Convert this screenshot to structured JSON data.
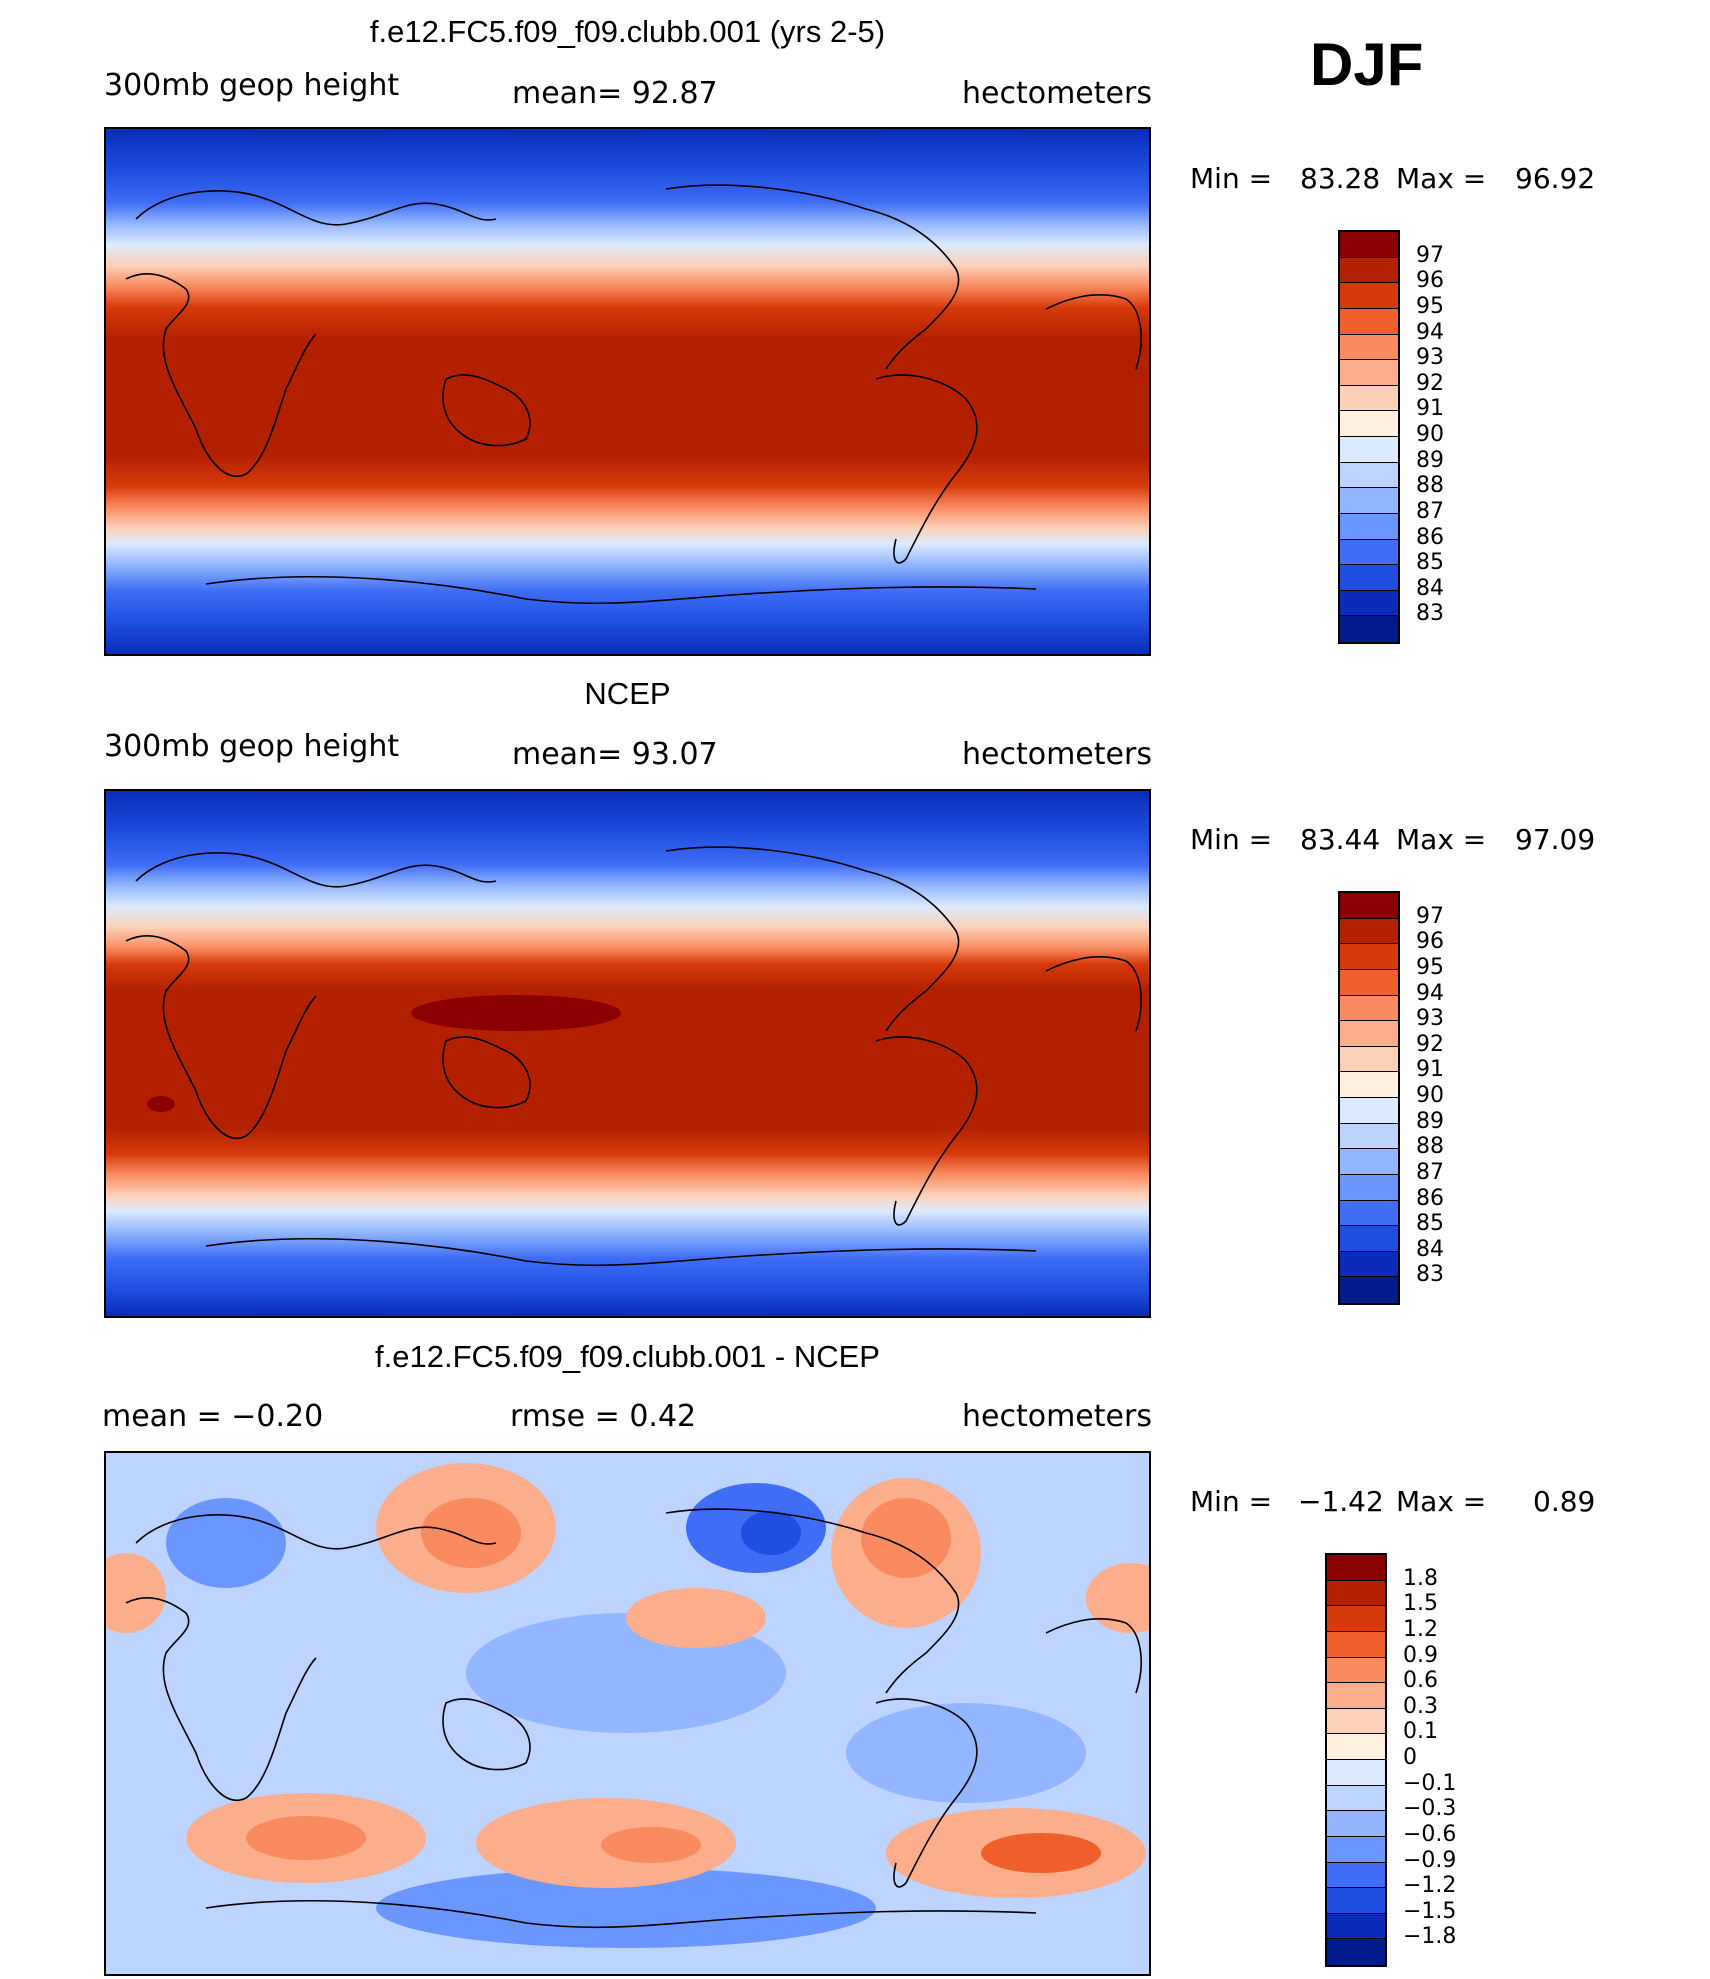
{
  "season": "DJF",
  "panels": [
    {
      "title": "f.e12.FC5.f09_f09.clubb.001 (yrs 2-5)",
      "left": "300mb  geop  height",
      "middle": "mean=   92.87",
      "right": "hectometers",
      "min_label": "Min  =",
      "min_value": "83.28",
      "max_label": "Max  =",
      "max_value": "96.92",
      "colorbar_labels": [
        "97",
        "96",
        "95",
        "94",
        "93",
        "92",
        "91",
        "90",
        "89",
        "88",
        "87",
        "86",
        "85",
        "84",
        "83"
      ],
      "colorbar_colors": [
        "#8b0000",
        "#b22000",
        "#d63a0a",
        "#f0602c",
        "#fa8a60",
        "#fcae8c",
        "#fdd1b8",
        "#fff0e0",
        "#dceaff",
        "#bcd4ff",
        "#92b6ff",
        "#6a96ff",
        "#3f6df5",
        "#1f4ee0",
        "#0a2cb8",
        "#001c8c"
      ]
    },
    {
      "title": "NCEP",
      "left": "300mb  geop  height",
      "middle": "mean=   93.07",
      "right": "hectometers",
      "min_label": "Min  =",
      "min_value": "83.44",
      "max_label": "Max  =",
      "max_value": "97.09",
      "colorbar_labels": [
        "97",
        "96",
        "95",
        "94",
        "93",
        "92",
        "91",
        "90",
        "89",
        "88",
        "87",
        "86",
        "85",
        "84",
        "83"
      ],
      "colorbar_colors": [
        "#8b0000",
        "#b22000",
        "#d63a0a",
        "#f0602c",
        "#fa8a60",
        "#fcae8c",
        "#fdd1b8",
        "#fff0e0",
        "#dceaff",
        "#bcd4ff",
        "#92b6ff",
        "#6a96ff",
        "#3f6df5",
        "#1f4ee0",
        "#0a2cb8",
        "#001c8c"
      ]
    },
    {
      "title": "f.e12.FC5.f09_f09.clubb.001 - NCEP",
      "left": "mean  =    −0.20",
      "middle": "rmse  =     0.42",
      "right": "hectometers",
      "min_label": "Min  =",
      "min_value": "−1.42",
      "max_label": "Max  =",
      "max_value": "0.89",
      "colorbar_labels": [
        "1.8",
        "1.5",
        "1.2",
        "0.9",
        "0.6",
        "0.3",
        "0.1",
        "0",
        "−0.1",
        "−0.3",
        "−0.6",
        "−0.9",
        "−1.2",
        "−1.5",
        "−1.8"
      ],
      "colorbar_colors": [
        "#8b0000",
        "#b22000",
        "#d63a0a",
        "#f0602c",
        "#fa8a60",
        "#fcae8c",
        "#fdd1b8",
        "#fff0e0",
        "#dceaff",
        "#bcd4ff",
        "#92b6ff",
        "#6a96ff",
        "#3f6df5",
        "#1f4ee0",
        "#0a2cb8",
        "#001c8c"
      ]
    }
  ]
}
